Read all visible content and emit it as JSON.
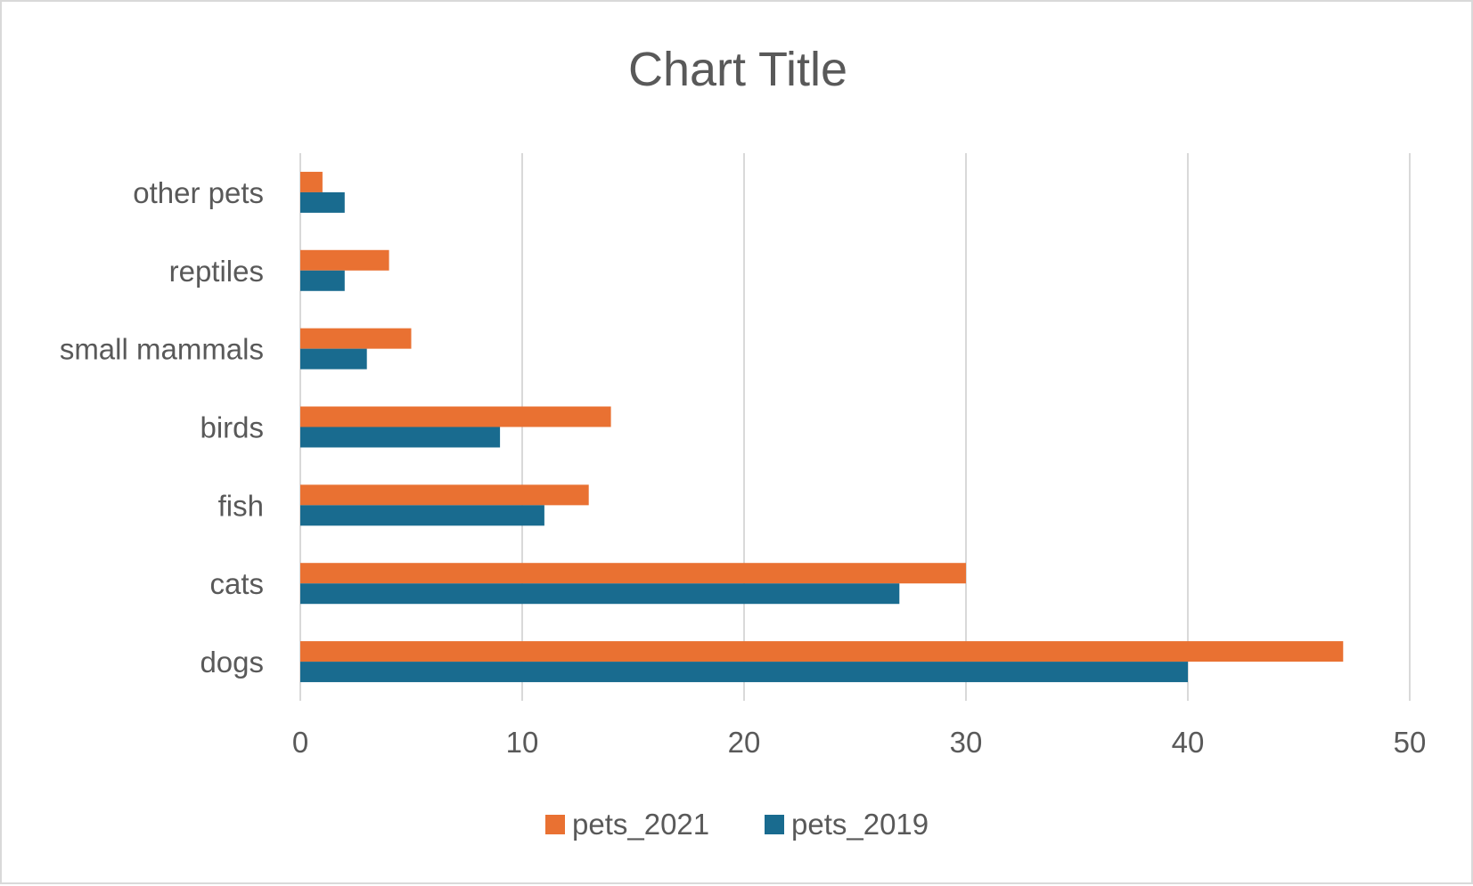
{
  "chart_data": {
    "type": "bar",
    "orientation": "horizontal",
    "title": "Chart Title",
    "categories": [
      "dogs",
      "cats",
      "fish",
      "birds",
      "small mammals",
      "reptiles",
      "other pets"
    ],
    "series": [
      {
        "name": "pets_2021",
        "color": "#E97132",
        "values": [
          47,
          30,
          13,
          14,
          5,
          4,
          1
        ]
      },
      {
        "name": "pets_2019",
        "color": "#196B8F",
        "values": [
          40,
          27,
          11,
          9,
          3,
          2,
          2
        ]
      }
    ],
    "xlim": [
      0,
      50
    ],
    "xticks": [
      "0",
      "10",
      "20",
      "30",
      "40",
      "50"
    ],
    "grid": "vertical",
    "legend": "bottom"
  }
}
